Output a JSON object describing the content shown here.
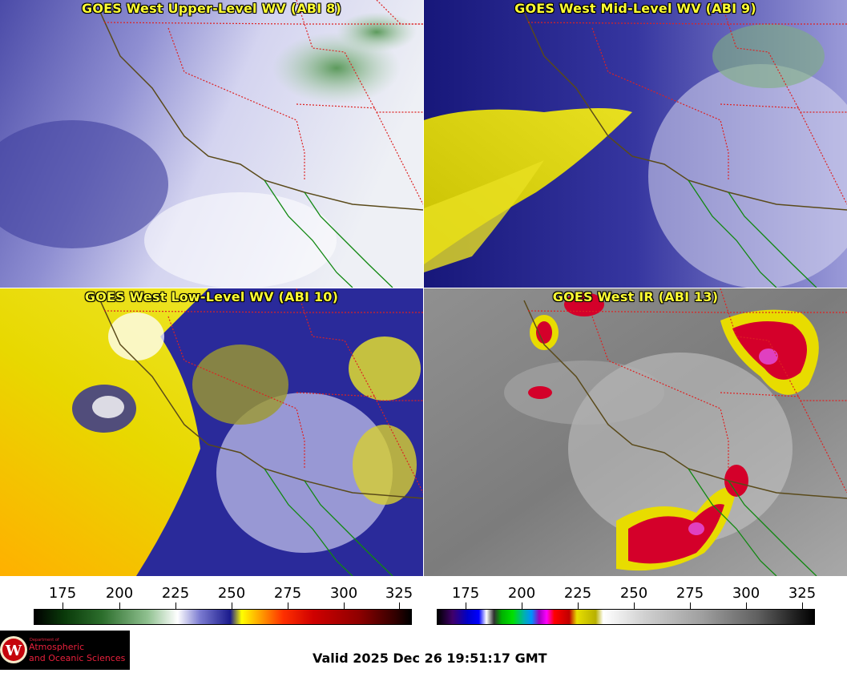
{
  "panels": {
    "upper": {
      "title": "GOES West Upper-Level WV (ABI 8)"
    },
    "mid": {
      "title": "GOES West Mid-Level WV (ABI 9)"
    },
    "low": {
      "title": "GOES West Low-Level WV (ABI 10)"
    },
    "ir": {
      "title": "GOES West IR (ABI 13)"
    }
  },
  "colorbars": {
    "wv": {
      "ticks": [
        "175",
        "200",
        "225",
        "250",
        "275",
        "300",
        "325"
      ]
    },
    "ir": {
      "ticks": [
        "175",
        "200",
        "225",
        "250",
        "275",
        "300",
        "325"
      ]
    }
  },
  "logo": {
    "dept": "Department of",
    "line1": "Atmospheric",
    "line2": "and Oceanic Sciences",
    "seal_letter": "W"
  },
  "footer": {
    "valid": "Valid 2025 Dec 26 19:51:17 GMT"
  },
  "colors": {
    "title_text": "#ffff33",
    "state_border": "#dd2222",
    "coast_wv": "#5a4a1a",
    "coast_ir_mexico": "#118811",
    "logo_text": "#e8203c"
  }
}
